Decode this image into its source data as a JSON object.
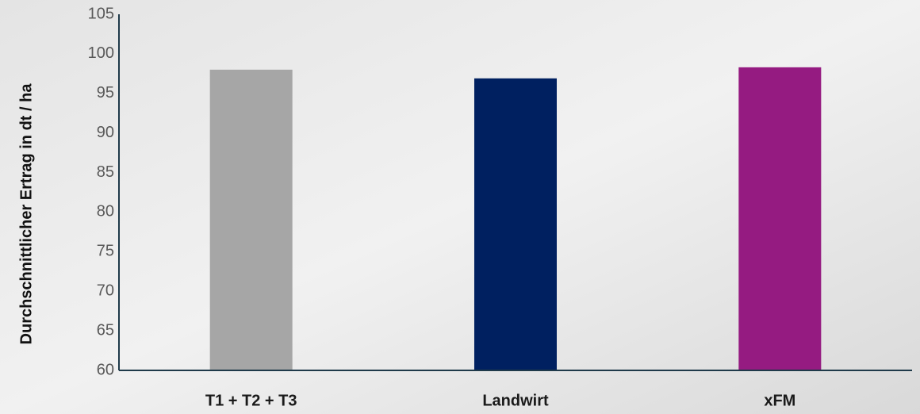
{
  "chart_data": {
    "type": "bar",
    "y_axis_label": "Durchschnittlicher Ertrag in dt / ha",
    "categories": [
      "T1 + T2 + T3",
      "Landwirt",
      "xFM"
    ],
    "values": [
      98.0,
      96.9,
      98.3
    ],
    "colors": [
      "#a6a6a6",
      "#002060",
      "#951b81"
    ],
    "ylim": [
      60,
      105
    ],
    "yticks": [
      60,
      65,
      70,
      75,
      80,
      85,
      90,
      95,
      100,
      105
    ],
    "grid": false
  }
}
